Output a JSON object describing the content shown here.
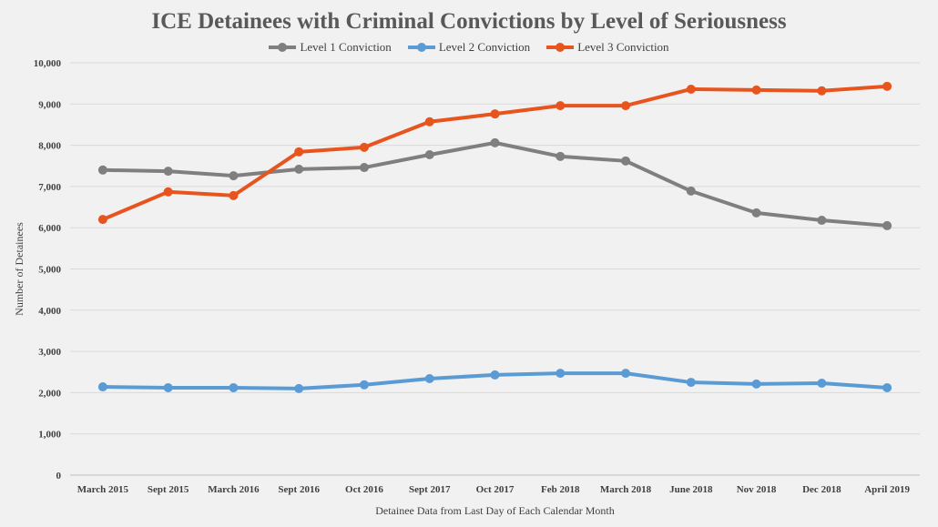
{
  "chart_data": {
    "type": "line",
    "title": "ICE Detainees with Criminal Convictions by Level of Seriousness",
    "xlabel": "Detainee Data from Last Day of Each Calendar Month",
    "ylabel": "Number of Detainees",
    "ylim": [
      0,
      10000
    ],
    "yticks": [
      "0",
      "1,000",
      "2,000",
      "3,000",
      "4,000",
      "5,000",
      "6,000",
      "7,000",
      "8,000",
      "9,000",
      "10,000"
    ],
    "grid": true,
    "legend_position": "top",
    "categories": [
      "March 2015",
      "Sept 2015",
      "March 2016",
      "Sept 2016",
      "Oct 2016",
      "Sept 2017",
      "Oct 2017",
      "Feb 2018",
      "March 2018",
      "June 2018",
      "Nov 2018",
      "Dec 2018",
      "April 2019"
    ],
    "series": [
      {
        "name": "Level 1 Conviction",
        "color": "#7f7f7f",
        "values": [
          7400,
          7370,
          7260,
          7420,
          7460,
          7770,
          8060,
          7730,
          7620,
          6890,
          6360,
          6180,
          6050
        ]
      },
      {
        "name": "Level 2 Conviction",
        "color": "#5b9bd5",
        "values": [
          2140,
          2120,
          2120,
          2100,
          2190,
          2340,
          2430,
          2470,
          2470,
          2250,
          2210,
          2230,
          2120
        ]
      },
      {
        "name": "Level 3 Conviction",
        "color": "#e8541e",
        "values": [
          6200,
          6870,
          6780,
          7840,
          7950,
          8570,
          8760,
          8960,
          8960,
          9360,
          9340,
          9320,
          9430
        ]
      }
    ]
  }
}
